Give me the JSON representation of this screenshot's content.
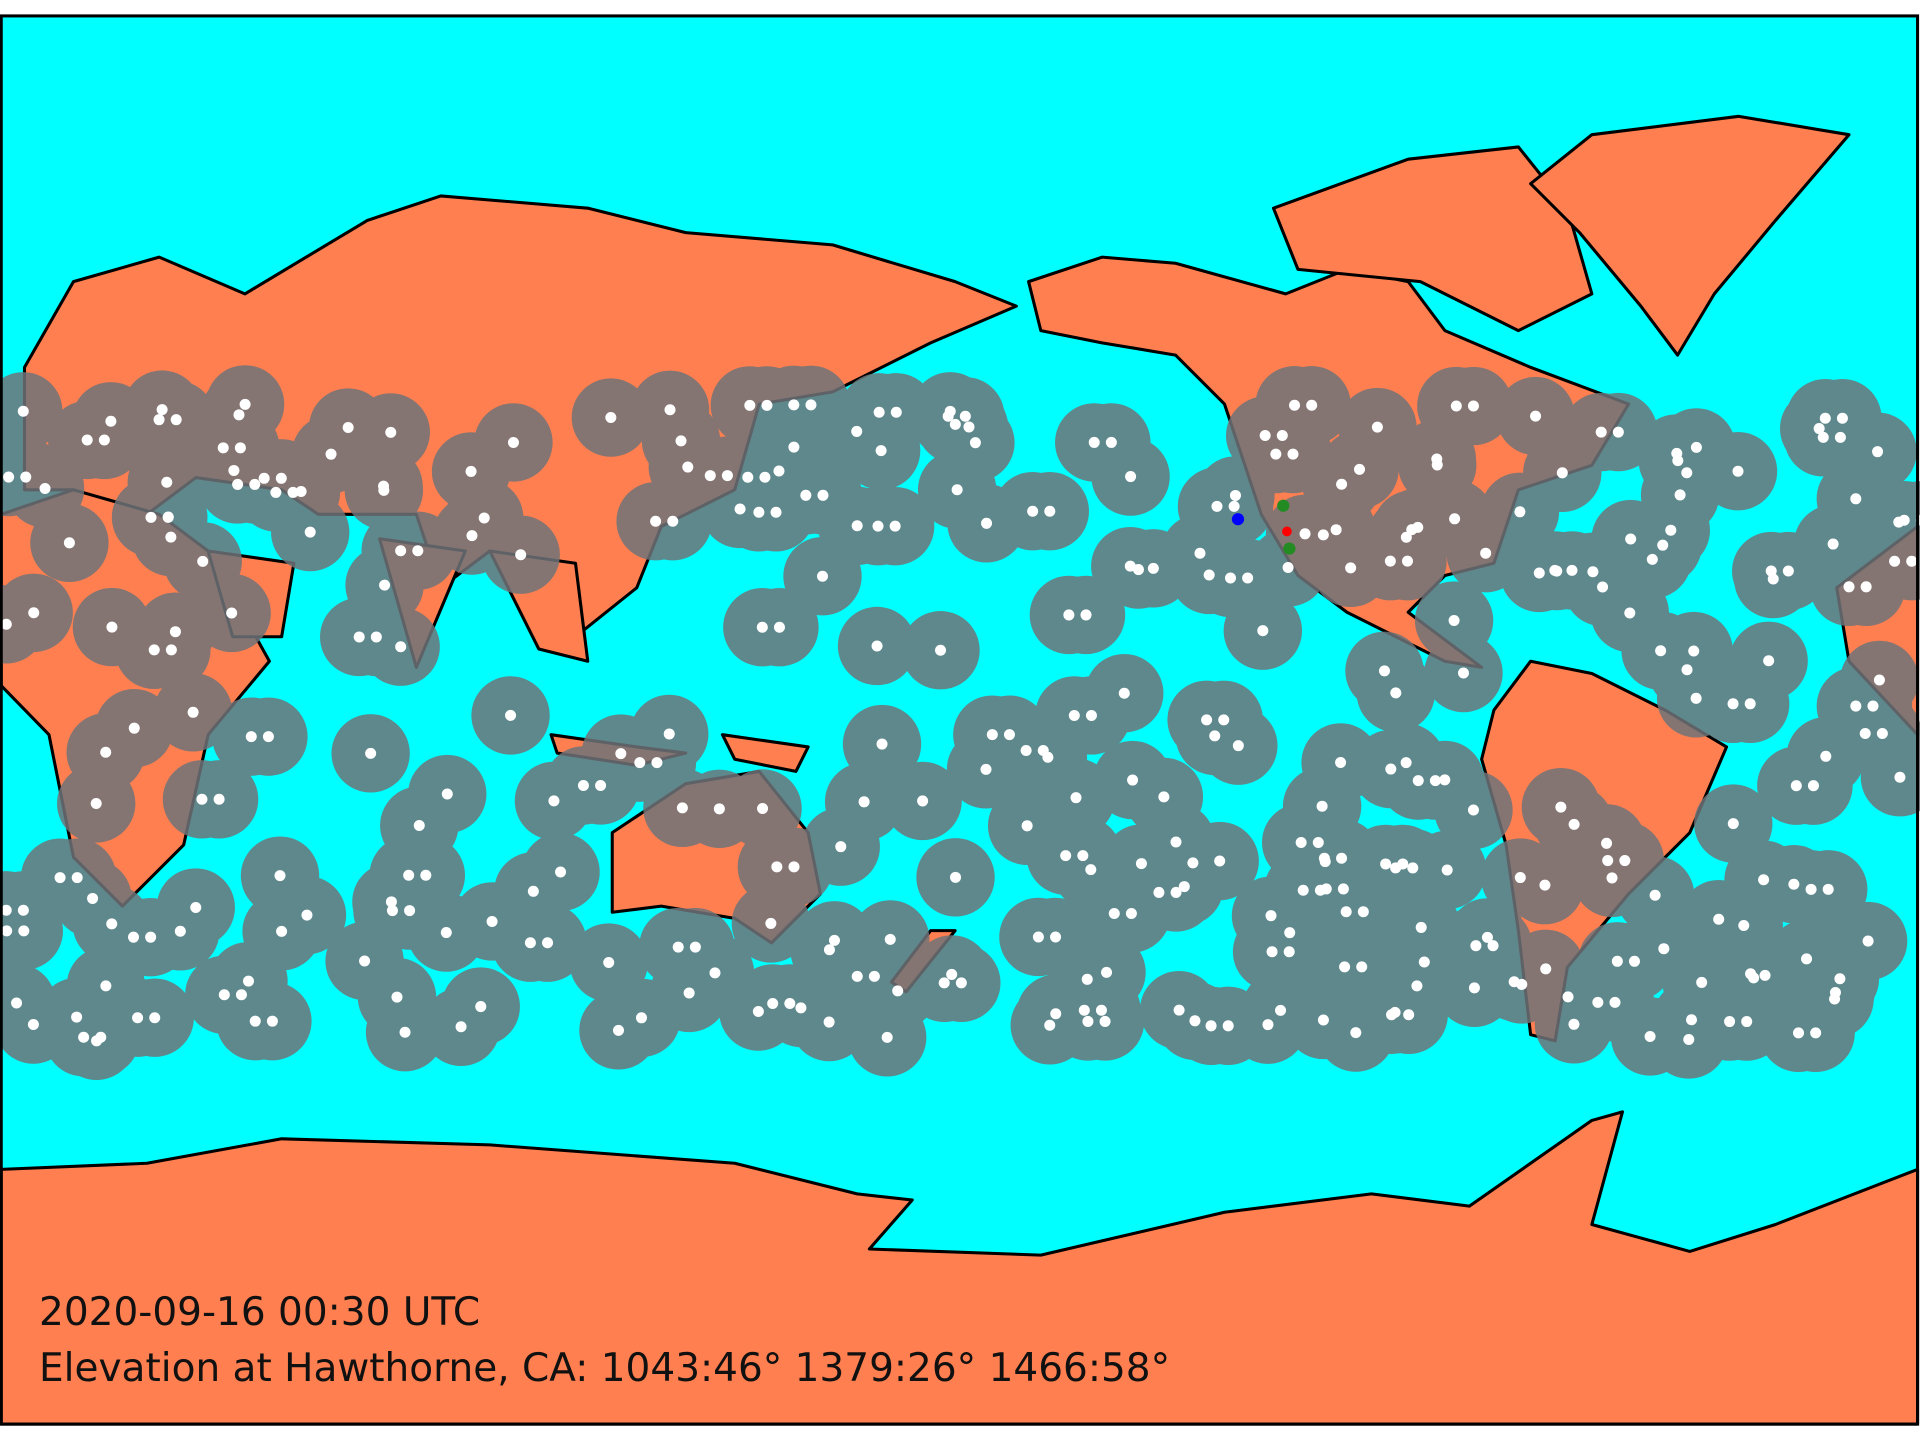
{
  "caption": {
    "timestamp": "2020-09-16 00:30 UTC",
    "elevation": "Elevation at Hawthorne, CA:  1043:46° 1379:26° 1466:58°"
  }
}
